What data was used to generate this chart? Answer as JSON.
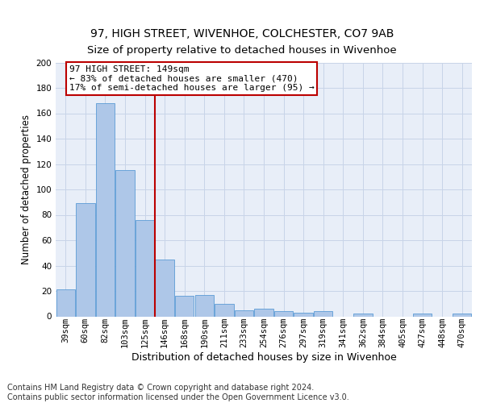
{
  "title": "97, HIGH STREET, WIVENHOE, COLCHESTER, CO7 9AB",
  "subtitle": "Size of property relative to detached houses in Wivenhoe",
  "xlabel": "Distribution of detached houses by size in Wivenhoe",
  "ylabel": "Number of detached properties",
  "categories": [
    "39sqm",
    "60sqm",
    "82sqm",
    "103sqm",
    "125sqm",
    "146sqm",
    "168sqm",
    "190sqm",
    "211sqm",
    "233sqm",
    "254sqm",
    "276sqm",
    "297sqm",
    "319sqm",
    "341sqm",
    "362sqm",
    "384sqm",
    "405sqm",
    "427sqm",
    "448sqm",
    "470sqm"
  ],
  "values": [
    21,
    89,
    168,
    115,
    76,
    45,
    16,
    17,
    10,
    5,
    6,
    4,
    3,
    4,
    0,
    2,
    0,
    0,
    2,
    0,
    2
  ],
  "bar_color": "#aec7e8",
  "bar_edge_color": "#5b9bd5",
  "grid_color": "#c8d4e8",
  "background_color": "#e8eef8",
  "vline_x_index": 5,
  "vline_color": "#bb0000",
  "annotation_line1": "97 HIGH STREET: 149sqm",
  "annotation_line2": "← 83% of detached houses are smaller (470)",
  "annotation_line3": "17% of semi-detached houses are larger (95) →",
  "annotation_box_color": "#bb0000",
  "ylim": [
    0,
    200
  ],
  "yticks": [
    0,
    20,
    40,
    60,
    80,
    100,
    120,
    140,
    160,
    180,
    200
  ],
  "footer": "Contains HM Land Registry data © Crown copyright and database right 2024.\nContains public sector information licensed under the Open Government Licence v3.0.",
  "title_fontsize": 10,
  "subtitle_fontsize": 9.5,
  "xlabel_fontsize": 9,
  "ylabel_fontsize": 8.5,
  "tick_fontsize": 7.5,
  "annotation_fontsize": 8,
  "footer_fontsize": 7
}
